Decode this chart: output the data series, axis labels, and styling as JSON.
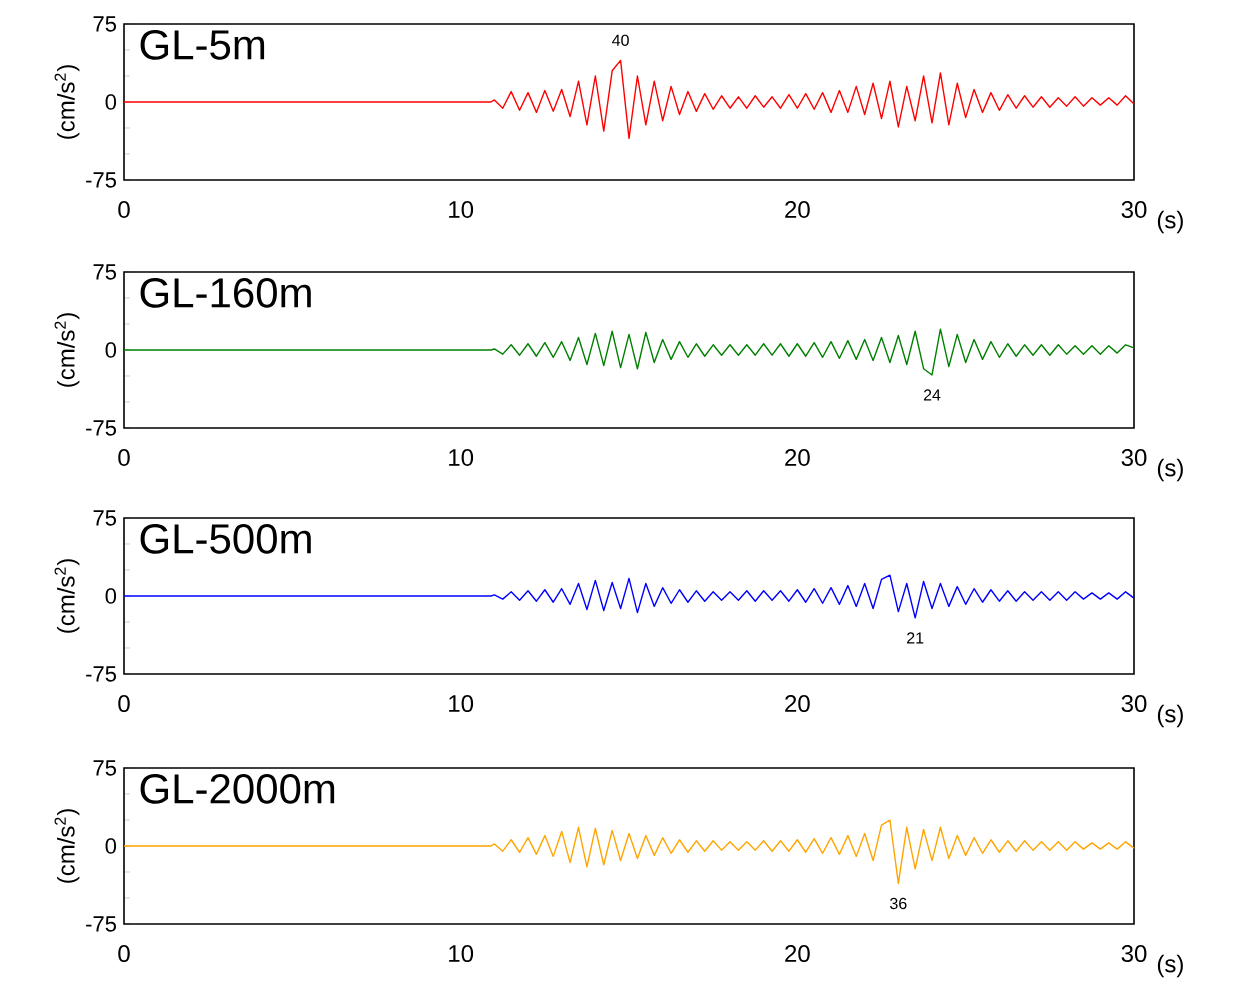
{
  "chart_data": [
    {
      "type": "line",
      "title": "GL-5m",
      "ylabel": "(cm/s$^{2}$)",
      "xlabel": "(s)",
      "xlim": [
        0,
        30
      ],
      "ylim": [
        -75,
        75
      ],
      "xticks": [
        0,
        10,
        20,
        30
      ],
      "yticks": [
        -75,
        {
          "value": -50,
          "label": null
        },
        {
          "value": -25,
          "label": null
        },
        0,
        {
          "value": 25,
          "label": null
        },
        {
          "value": 50,
          "label": null
        },
        75
      ],
      "marker": "none",
      "line_style": "solid",
      "x": [
        0,
        10.9,
        11,
        11.25,
        11.5,
        11.75,
        12,
        12.25,
        12.5,
        12.75,
        13,
        13.25,
        13.5,
        13.75,
        14,
        14.25,
        14.5,
        14.75,
        15,
        15.25,
        15.5,
        15.75,
        16,
        16.25,
        16.5,
        16.75,
        17,
        17.25,
        17.5,
        17.75,
        18,
        18.25,
        18.5,
        18.75,
        19,
        19.25,
        19.5,
        19.75,
        20,
        20.25,
        20.5,
        20.75,
        21,
        21.25,
        21.5,
        21.75,
        22,
        22.25,
        22.5,
        22.75,
        23,
        23.25,
        23.5,
        23.75,
        24,
        24.25,
        24.5,
        24.75,
        25,
        25.25,
        25.5,
        25.75,
        26,
        26.25,
        26.5,
        26.75,
        27,
        27.25,
        27.5,
        27.75,
        28,
        28.25,
        28.5,
        28.75,
        29,
        29.25,
        29.5,
        29.75,
        30
      ],
      "series": [
        {
          "color": "#ff0000",
          "values": [
            0,
            0,
            2,
            -6,
            10,
            -8,
            9,
            -10,
            11,
            -9,
            12,
            -14,
            20,
            -22,
            25,
            -28,
            30,
            40,
            -35,
            25,
            -22,
            20,
            -18,
            15,
            -12,
            10,
            -9,
            8,
            -7,
            6,
            -6,
            5,
            -6,
            6,
            -5,
            5,
            -6,
            7,
            -6,
            8,
            -7,
            9,
            -10,
            11,
            -10,
            15,
            -12,
            18,
            -16,
            20,
            -24,
            15,
            -18,
            25,
            -20,
            28,
            -22,
            18,
            -15,
            12,
            -10,
            9,
            -8,
            7,
            -6,
            6,
            -5,
            5,
            -5,
            4,
            -4,
            5,
            -4,
            4,
            -3,
            4,
            -3,
            6,
            -2
          ]
        }
      ],
      "annotations": [
        {
          "text": "40",
          "x": 14.75,
          "y": 40
        }
      ]
    },
    {
      "type": "line",
      "title": "GL-160m",
      "ylabel": "(cm/s$^{2}$)",
      "xlabel": "(s)",
      "xlim": [
        0,
        30
      ],
      "ylim": [
        -75,
        75
      ],
      "xticks": [
        0,
        10,
        20,
        30
      ],
      "yticks": [
        -75,
        {
          "value": -50,
          "label": null
        },
        {
          "value": -25,
          "label": null
        },
        0,
        {
          "value": 25,
          "label": null
        },
        {
          "value": 50,
          "label": null
        },
        75
      ],
      "marker": "none",
      "line_style": "solid",
      "x": [
        0,
        10.9,
        11,
        11.25,
        11.5,
        11.75,
        12,
        12.25,
        12.5,
        12.75,
        13,
        13.25,
        13.5,
        13.75,
        14,
        14.25,
        14.5,
        14.75,
        15,
        15.25,
        15.5,
        15.75,
        16,
        16.25,
        16.5,
        16.75,
        17,
        17.25,
        17.5,
        17.75,
        18,
        18.25,
        18.5,
        18.75,
        19,
        19.25,
        19.5,
        19.75,
        20,
        20.25,
        20.5,
        20.75,
        21,
        21.25,
        21.5,
        21.75,
        22,
        22.25,
        22.5,
        22.75,
        23,
        23.25,
        23.5,
        23.75,
        24,
        24.25,
        24.5,
        24.75,
        25,
        25.25,
        25.5,
        25.75,
        26,
        26.25,
        26.5,
        26.75,
        27,
        27.25,
        27.5,
        27.75,
        28,
        28.25,
        28.5,
        28.75,
        29,
        29.25,
        29.5,
        29.75,
        30
      ],
      "series": [
        {
          "color": "#008000",
          "values": [
            0,
            0,
            1,
            -4,
            5,
            -5,
            6,
            -6,
            7,
            -7,
            8,
            -10,
            12,
            -14,
            16,
            -15,
            18,
            -17,
            15,
            -18,
            17,
            -12,
            10,
            -9,
            8,
            -7,
            6,
            -6,
            5,
            -5,
            5,
            -5,
            5,
            -5,
            6,
            -5,
            6,
            -6,
            6,
            -6,
            7,
            -7,
            8,
            -8,
            9,
            -9,
            10,
            -10,
            12,
            -12,
            14,
            -14,
            18,
            -18,
            -24,
            20,
            -16,
            15,
            -12,
            10,
            -9,
            8,
            -7,
            6,
            -6,
            5,
            -5,
            5,
            -5,
            5,
            -4,
            4,
            -4,
            4,
            -4,
            4,
            -3,
            5,
            2
          ]
        }
      ],
      "annotations": [
        {
          "text": "24",
          "x": 24,
          "y": -24
        }
      ]
    },
    {
      "type": "line",
      "title": "GL-500m",
      "ylabel": "(cm/s$^{2}$)",
      "xlabel": "(s)",
      "xlim": [
        0,
        30
      ],
      "ylim": [
        -75,
        75
      ],
      "xticks": [
        0,
        10,
        20,
        30
      ],
      "yticks": [
        -75,
        {
          "value": -50,
          "label": null
        },
        {
          "value": -25,
          "label": null
        },
        0,
        {
          "value": 25,
          "label": null
        },
        {
          "value": 50,
          "label": null
        },
        75
      ],
      "marker": "none",
      "line_style": "solid",
      "x": [
        0,
        10.9,
        11,
        11.25,
        11.5,
        11.75,
        12,
        12.25,
        12.5,
        12.75,
        13,
        13.25,
        13.5,
        13.75,
        14,
        14.25,
        14.5,
        14.75,
        15,
        15.25,
        15.5,
        15.75,
        16,
        16.25,
        16.5,
        16.75,
        17,
        17.25,
        17.5,
        17.75,
        18,
        18.25,
        18.5,
        18.75,
        19,
        19.25,
        19.5,
        19.75,
        20,
        20.25,
        20.5,
        20.75,
        21,
        21.25,
        21.5,
        21.75,
        22,
        22.25,
        22.5,
        22.75,
        23,
        23.25,
        23.5,
        23.75,
        24,
        24.25,
        24.5,
        24.75,
        25,
        25.25,
        25.5,
        25.75,
        26,
        26.25,
        26.5,
        26.75,
        27,
        27.25,
        27.5,
        27.75,
        28,
        28.25,
        28.5,
        28.75,
        29,
        29.25,
        29.5,
        29.75,
        30
      ],
      "series": [
        {
          "color": "#0000ff",
          "values": [
            0,
            0,
            1,
            -3,
            4,
            -4,
            5,
            -5,
            6,
            -6,
            7,
            -8,
            12,
            -13,
            15,
            -14,
            13,
            -12,
            17,
            -16,
            12,
            -10,
            8,
            -7,
            6,
            -6,
            5,
            -5,
            4,
            -4,
            4,
            -4,
            5,
            -5,
            5,
            -4,
            5,
            -5,
            6,
            -6,
            7,
            -7,
            8,
            -8,
            10,
            -10,
            12,
            -12,
            16,
            20,
            -15,
            12,
            -21,
            14,
            -12,
            12,
            -10,
            9,
            -8,
            7,
            -6,
            6,
            -5,
            5,
            -5,
            4,
            -4,
            4,
            -4,
            4,
            -4,
            4,
            -3,
            3,
            -3,
            3,
            -3,
            4,
            -2
          ]
        }
      ],
      "annotations": [
        {
          "text": "21",
          "x": 23.5,
          "y": -21
        }
      ]
    },
    {
      "type": "line",
      "title": "GL-2000m",
      "ylabel": "(cm/s$^{2}$)",
      "xlabel": "(s)",
      "xlim": [
        0,
        30
      ],
      "ylim": [
        -75,
        75
      ],
      "xticks": [
        0,
        10,
        20,
        30
      ],
      "yticks": [
        -75,
        {
          "value": -50,
          "label": null
        },
        {
          "value": -25,
          "label": null
        },
        0,
        {
          "value": 25,
          "label": null
        },
        {
          "value": 50,
          "label": null
        },
        75
      ],
      "marker": "none",
      "line_style": "solid",
      "x": [
        0,
        10.9,
        11,
        11.25,
        11.5,
        11.75,
        12,
        12.25,
        12.5,
        12.75,
        13,
        13.25,
        13.5,
        13.75,
        14,
        14.25,
        14.5,
        14.75,
        15,
        15.25,
        15.5,
        15.75,
        16,
        16.25,
        16.5,
        16.75,
        17,
        17.25,
        17.5,
        17.75,
        18,
        18.25,
        18.5,
        18.75,
        19,
        19.25,
        19.5,
        19.75,
        20,
        20.25,
        20.5,
        20.75,
        21,
        21.25,
        21.5,
        21.75,
        22,
        22.25,
        22.5,
        22.75,
        23,
        23.25,
        23.5,
        23.75,
        24,
        24.25,
        24.5,
        24.75,
        25,
        25.25,
        25.5,
        25.75,
        26,
        26.25,
        26.5,
        26.75,
        27,
        27.25,
        27.5,
        27.75,
        28,
        28.25,
        28.5,
        28.75,
        29,
        29.25,
        29.5,
        29.75,
        30
      ],
      "series": [
        {
          "color": "#ffa500",
          "values": [
            0,
            0,
            2,
            -5,
            6,
            -6,
            8,
            -8,
            10,
            -10,
            14,
            -16,
            18,
            -20,
            17,
            -18,
            15,
            -14,
            12,
            -12,
            10,
            -9,
            8,
            -7,
            6,
            -6,
            5,
            -5,
            5,
            -4,
            4,
            -4,
            4,
            -4,
            5,
            -5,
            5,
            -5,
            6,
            -6,
            7,
            -7,
            8,
            -8,
            10,
            -10,
            12,
            -14,
            20,
            25,
            -36,
            18,
            -22,
            16,
            -14,
            18,
            -12,
            10,
            -9,
            8,
            -7,
            6,
            -6,
            5,
            -5,
            5,
            -4,
            4,
            -4,
            4,
            -4,
            4,
            -3,
            3,
            -3,
            3,
            -3,
            4,
            -2
          ]
        }
      ],
      "annotations": [
        {
          "text": "36",
          "x": 23,
          "y": -36
        }
      ]
    }
  ]
}
